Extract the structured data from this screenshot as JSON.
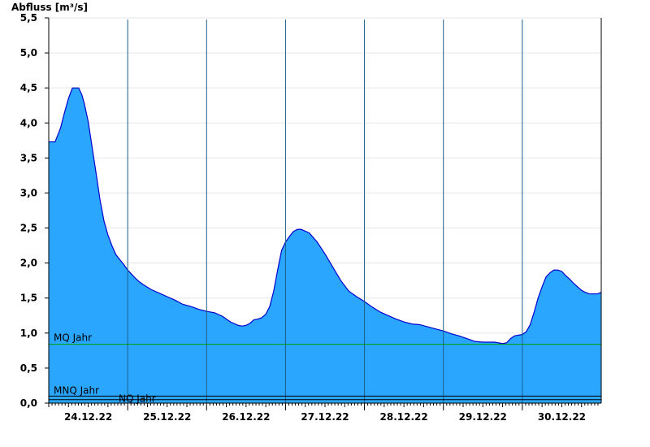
{
  "chart_data": {
    "type": "area",
    "ylabel": "Abfluss [m³/s]",
    "ylim": [
      0,
      5.5
    ],
    "yticks": [
      "0,0",
      "0,5",
      "1,0",
      "1,5",
      "2,0",
      "2,5",
      "3,0",
      "3,5",
      "4,0",
      "4,5",
      "5,0",
      "5,5"
    ],
    "ytick_values": [
      0,
      0.5,
      1.0,
      1.5,
      2.0,
      2.5,
      3.0,
      3.5,
      4.0,
      4.5,
      5.0,
      5.5
    ],
    "xlim": [
      0,
      7
    ],
    "xtick_labels": [
      "24.12.22",
      "25.12.22",
      "26.12.22",
      "27.12.22",
      "28.12.22",
      "29.12.22",
      "30.12.22"
    ],
    "grid": true,
    "series": [
      {
        "color": "#2aa6ff",
        "x": [
          0,
          0.08,
          0.15,
          0.2,
          0.25,
          0.3,
          0.33,
          0.38,
          0.42,
          0.45,
          0.5,
          0.55,
          0.6,
          0.65,
          0.7,
          0.75,
          0.8,
          0.85,
          0.9,
          0.95,
          1.0,
          1.05,
          1.1,
          1.15,
          1.2,
          1.3,
          1.4,
          1.5,
          1.6,
          1.7,
          1.8,
          1.9,
          2.0,
          2.1,
          2.2,
          2.3,
          2.4,
          2.45,
          2.5,
          2.55,
          2.6,
          2.65,
          2.7,
          2.75,
          2.8,
          2.85,
          2.9,
          2.95,
          3.0,
          3.05,
          3.1,
          3.15,
          3.2,
          3.3,
          3.4,
          3.5,
          3.6,
          3.7,
          3.8,
          3.9,
          4.0,
          4.1,
          4.2,
          4.3,
          4.4,
          4.5,
          4.6,
          4.7,
          4.8,
          4.9,
          5.0,
          5.1,
          5.2,
          5.3,
          5.4,
          5.5,
          5.6,
          5.65,
          5.7,
          5.75,
          5.8,
          5.85,
          5.9,
          5.95,
          6.0,
          6.05,
          6.1,
          6.15,
          6.2,
          6.25,
          6.3,
          6.35,
          6.4,
          6.45,
          6.5,
          6.55,
          6.6,
          6.65,
          6.7,
          6.75,
          6.8,
          6.85,
          6.9,
          6.95,
          7.0
        ],
        "y": [
          3.73,
          3.73,
          3.93,
          4.15,
          4.35,
          4.5,
          4.5,
          4.5,
          4.4,
          4.28,
          4.02,
          3.65,
          3.28,
          2.9,
          2.6,
          2.4,
          2.25,
          2.12,
          2.05,
          1.98,
          1.9,
          1.84,
          1.78,
          1.73,
          1.69,
          1.62,
          1.57,
          1.52,
          1.47,
          1.41,
          1.38,
          1.34,
          1.31,
          1.29,
          1.24,
          1.16,
          1.11,
          1.1,
          1.11,
          1.14,
          1.19,
          1.2,
          1.22,
          1.27,
          1.38,
          1.6,
          1.9,
          2.18,
          2.3,
          2.38,
          2.45,
          2.48,
          2.48,
          2.43,
          2.3,
          2.13,
          1.94,
          1.75,
          1.6,
          1.52,
          1.45,
          1.37,
          1.3,
          1.25,
          1.2,
          1.16,
          1.13,
          1.12,
          1.09,
          1.06,
          1.03,
          0.99,
          0.96,
          0.92,
          0.88,
          0.87,
          0.87,
          0.87,
          0.86,
          0.85,
          0.86,
          0.92,
          0.96,
          0.97,
          0.98,
          1.02,
          1.12,
          1.3,
          1.5,
          1.66,
          1.8,
          1.86,
          1.9,
          1.9,
          1.88,
          1.82,
          1.77,
          1.71,
          1.66,
          1.61,
          1.58,
          1.56,
          1.56,
          1.56,
          1.58
        ]
      }
    ],
    "reference_lines": [
      {
        "label": "MQ Jahr",
        "value": 0.84,
        "color": "#00a000"
      },
      {
        "label": "MNQ Jahr",
        "value": 0.1,
        "color": "#000000"
      },
      {
        "label": "NQ Jahr",
        "value": 0.05,
        "color": "#000000"
      }
    ]
  }
}
